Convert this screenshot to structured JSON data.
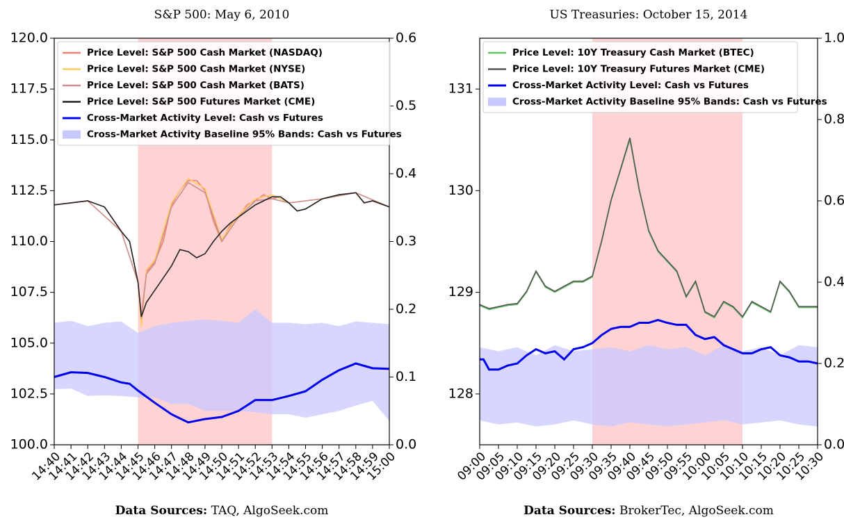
{
  "chart_data": [
    {
      "type": "line",
      "title": "S&P 500: May 6, 2010",
      "source_label": "Data Sources:",
      "source": "TAQ, AlgoSeek.com",
      "xlim": [
        "14:40",
        "15:00"
      ],
      "xticks": [
        "14:40",
        "14:41",
        "14:42",
        "14:43",
        "14:44",
        "14:45",
        "14:46",
        "14:47",
        "14:48",
        "14:49",
        "14:50",
        "14:51",
        "14:52",
        "14:53",
        "14:54",
        "14:55",
        "14:56",
        "14:57",
        "14:58",
        "14:59",
        "15:00"
      ],
      "highlight": [
        "14:45",
        "14:53"
      ],
      "highlight_color": "#ffc8c8",
      "ylim": [
        100,
        120
      ],
      "yticks": [
        {
          "value": 100,
          "label": "100.0"
        },
        {
          "value": 102.5,
          "label": "102.5"
        },
        {
          "value": 105,
          "label": "105.0"
        },
        {
          "value": 107.5,
          "label": "107.5"
        },
        {
          "value": 110,
          "label": "110.0"
        },
        {
          "value": 112.5,
          "label": "112.5"
        },
        {
          "value": 115,
          "label": "115.0"
        },
        {
          "value": 117.5,
          "label": "117.5"
        },
        {
          "value": 120,
          "label": "120.0"
        }
      ],
      "y2lim": [
        0,
        0.6
      ],
      "y2ticks": [
        {
          "value": 0,
          "label": "0.0"
        },
        {
          "value": 0.1,
          "label": "0.1"
        },
        {
          "value": 0.2,
          "label": "0.2"
        },
        {
          "value": 0.3,
          "label": "0.3"
        },
        {
          "value": 0.4,
          "label": "0.4"
        },
        {
          "value": 0.5,
          "label": "0.5"
        },
        {
          "value": 0.6,
          "label": "0.6"
        }
      ],
      "legend": "upper left",
      "series": [
        {
          "name": "Price Level: S&P 500 Cash Market (NASDAQ)",
          "color": "#f08070",
          "x": [
            "14:40",
            "14:41",
            "14:42",
            "14:43",
            "14:44",
            "14:44:30",
            "14:45",
            "14:45:12",
            "14:45:30",
            "14:46",
            "14:46:30",
            "14:47",
            "14:47:30",
            "14:48",
            "14:48:30",
            "14:49",
            "14:49:30",
            "14:50",
            "14:50:30",
            "14:51",
            "14:51:30",
            "14:52",
            "14:52:30",
            "14:53",
            "14:53:30",
            "14:54",
            "14:54:30",
            "14:55",
            "14:56",
            "14:57",
            "14:58",
            "14:58:30",
            "14:59",
            "15:00"
          ],
          "values": [
            111.8,
            111.9,
            112.0,
            111.7,
            110.5,
            110.0,
            108.0,
            106.3,
            108.5,
            109.0,
            110.0,
            111.8,
            112.5,
            113.0,
            113.0,
            112.5,
            111.0,
            110.0,
            110.8,
            111.2,
            111.8,
            112.0,
            112.3,
            112.1,
            112.2,
            111.9,
            111.5,
            111.6,
            112.1,
            112.3,
            112.4,
            111.9,
            112.0,
            111.7
          ]
        },
        {
          "name": "Price Level: S&P 500 Cash Market (NYSE)",
          "color": "#ffcc66",
          "x": [
            "14:40",
            "14:42",
            "14:44",
            "14:45",
            "14:45:12",
            "14:45:30",
            "14:46",
            "14:47",
            "14:48",
            "14:49",
            "14:50",
            "14:51",
            "14:52",
            "14:53",
            "14:54",
            "14:56",
            "14:58",
            "15:00"
          ],
          "values": [
            111.8,
            112.0,
            110.5,
            108.0,
            105.8,
            108.6,
            109.1,
            111.9,
            113.1,
            112.6,
            110.1,
            111.3,
            112.1,
            112.3,
            111.9,
            112.1,
            112.4,
            111.7
          ]
        },
        {
          "name": "Price Level: S&P 500 Cash Market (BATS)",
          "color": "#c89090",
          "x": [
            "14:40",
            "14:42",
            "14:44",
            "14:45",
            "14:45:12",
            "14:45:30",
            "14:46",
            "14:47",
            "14:48",
            "14:49",
            "14:50",
            "14:51",
            "14:52",
            "14:53",
            "14:54",
            "14:56",
            "14:58",
            "15:00"
          ],
          "values": [
            111.8,
            112.0,
            110.5,
            108.0,
            106.2,
            108.4,
            108.9,
            111.7,
            112.9,
            112.4,
            110.0,
            111.2,
            112.0,
            112.1,
            111.9,
            112.1,
            112.4,
            111.7
          ]
        },
        {
          "name": "Price Level: S&P 500 Futures Market (CME)",
          "color": "#222222",
          "x": [
            "14:40",
            "14:41",
            "14:42",
            "14:43",
            "14:44",
            "14:44:30",
            "14:45",
            "14:45:12",
            "14:45:30",
            "14:46",
            "14:46:30",
            "14:47",
            "14:47:30",
            "14:48",
            "14:48:30",
            "14:49",
            "14:49:30",
            "14:50",
            "14:50:30",
            "14:51",
            "14:51:30",
            "14:52",
            "14:52:30",
            "14:53",
            "14:53:30",
            "14:54",
            "14:54:30",
            "14:55",
            "14:56",
            "14:57",
            "14:58",
            "14:58:30",
            "14:59",
            "15:00"
          ],
          "values": [
            111.8,
            111.9,
            112.0,
            111.7,
            110.5,
            110.0,
            108.0,
            106.3,
            107.0,
            107.6,
            108.2,
            108.8,
            109.6,
            109.5,
            109.2,
            109.4,
            110.0,
            110.5,
            110.9,
            111.2,
            111.5,
            111.8,
            112.0,
            112.2,
            112.2,
            111.9,
            111.5,
            111.6,
            112.1,
            112.3,
            112.4,
            111.9,
            112.0,
            111.7
          ]
        },
        {
          "name": "Cross-Market Activity Level: Cash vs Futures",
          "color": "#0000ee",
          "axis": "y2",
          "x": [
            "14:40",
            "14:41",
            "14:42",
            "14:43",
            "14:44",
            "14:44:30",
            "14:45",
            "14:46",
            "14:47",
            "14:48",
            "14:49",
            "14:50",
            "14:51",
            "14:52",
            "14:53",
            "14:54",
            "14:55",
            "14:56",
            "14:57",
            "14:58",
            "14:59",
            "15:00"
          ],
          "values": [
            0.1,
            0.107,
            0.106,
            0.1,
            0.092,
            0.09,
            0.08,
            0.062,
            0.045,
            0.033,
            0.038,
            0.041,
            0.05,
            0.066,
            0.066,
            0.072,
            0.079,
            0.096,
            0.11,
            0.12,
            0.113,
            0.112
          ]
        },
        {
          "name": "Cross-Market Activity Baseline 95% Bands: Cash vs Futures",
          "color": "#c8c8ff",
          "axis": "y2",
          "type": "band",
          "x": [
            "14:40",
            "14:41",
            "14:42",
            "14:43",
            "14:44",
            "14:45",
            "14:46",
            "14:47",
            "14:48",
            "14:49",
            "14:50",
            "14:51",
            "14:52",
            "14:53",
            "14:54",
            "14:55",
            "14:56",
            "14:57",
            "14:58",
            "14:59",
            "15:00"
          ],
          "upper": [
            0.18,
            0.183,
            0.175,
            0.18,
            0.182,
            0.165,
            0.175,
            0.18,
            0.183,
            0.185,
            0.183,
            0.18,
            0.2,
            0.18,
            0.18,
            0.178,
            0.18,
            0.175,
            0.182,
            0.18,
            0.178
          ],
          "lower": [
            0.082,
            0.083,
            0.072,
            0.073,
            0.072,
            0.07,
            0.07,
            0.06,
            0.06,
            0.05,
            0.05,
            0.05,
            0.048,
            0.045,
            0.045,
            0.04,
            0.045,
            0.05,
            0.058,
            0.065,
            0.035
          ]
        }
      ]
    },
    {
      "type": "line",
      "title": "US Treasuries: October 15, 2014",
      "source_label": "Data Sources:",
      "source": "BrokerTec, AlgoSeek.com",
      "xlim": [
        "09:00",
        "10:30"
      ],
      "xticks": [
        "09:00",
        "09:05",
        "09:10",
        "09:15",
        "09:20",
        "09:25",
        "09:30",
        "09:35",
        "09:40",
        "09:45",
        "09:50",
        "09:55",
        "10:00",
        "10:05",
        "10:10",
        "10:15",
        "10:20",
        "10:25",
        "10:30"
      ],
      "highlight": [
        "09:30",
        "10:10"
      ],
      "highlight_color": "#ffc8c8",
      "ylim": [
        127.5,
        131.5
      ],
      "yticks": [
        128,
        129,
        130,
        131
      ],
      "y2lim": [
        0,
        1
      ],
      "y2ticks": [
        {
          "value": 0,
          "label": "0.0"
        },
        {
          "value": 0.2,
          "label": "0.2"
        },
        {
          "value": 0.4,
          "label": "0.4"
        },
        {
          "value": 0.6,
          "label": "0.6"
        },
        {
          "value": 0.8,
          "label": "0.8"
        },
        {
          "value": 1,
          "label": "1.0"
        }
      ],
      "legend": "upper left",
      "series": [
        {
          "name": "Price Level: 10Y Treasury Cash Market (BTEC)",
          "color": "#66bb66",
          "x": [
            "09:00",
            "09:02:30",
            "09:05",
            "09:07:30",
            "09:10",
            "09:12:30",
            "09:15",
            "09:17:30",
            "09:20",
            "09:22:30",
            "09:25",
            "09:27:30",
            "09:30",
            "09:32:30",
            "09:35",
            "09:37:30",
            "09:40",
            "09:42:30",
            "09:45",
            "09:47:30",
            "09:50",
            "09:52:30",
            "09:55",
            "09:57:30",
            "10:00",
            "10:02:30",
            "10:05",
            "10:07:30",
            "10:10",
            "10:12:30",
            "10:15",
            "10:17:30",
            "10:20",
            "10:22:30",
            "10:25",
            "10:27:30",
            "10:30"
          ],
          "values": [
            128.87,
            128.83,
            128.85,
            128.87,
            128.88,
            129.0,
            129.2,
            129.05,
            129.0,
            129.05,
            129.1,
            129.1,
            129.15,
            129.5,
            129.9,
            130.2,
            130.5,
            130.0,
            129.6,
            129.4,
            129.3,
            129.2,
            128.95,
            129.1,
            128.8,
            128.75,
            128.9,
            128.85,
            128.75,
            128.9,
            128.85,
            128.8,
            129.1,
            129.0,
            128.85,
            128.85,
            128.85
          ]
        },
        {
          "name": "Price Level: 10Y Treasury Futures Market (CME)",
          "color": "#555555",
          "x": [
            "09:00",
            "09:02:30",
            "09:05",
            "09:07:30",
            "09:10",
            "09:12:30",
            "09:15",
            "09:17:30",
            "09:20",
            "09:22:30",
            "09:25",
            "09:27:30",
            "09:30",
            "09:32:30",
            "09:35",
            "09:37:30",
            "09:40",
            "09:42:30",
            "09:45",
            "09:47:30",
            "09:50",
            "09:52:30",
            "09:55",
            "09:57:30",
            "10:00",
            "10:02:30",
            "10:05",
            "10:07:30",
            "10:10",
            "10:12:30",
            "10:15",
            "10:17:30",
            "10:20",
            "10:22:30",
            "10:25",
            "10:27:30",
            "10:30"
          ],
          "values": [
            128.88,
            128.84,
            128.86,
            128.88,
            128.89,
            129.01,
            129.21,
            129.06,
            129.01,
            129.06,
            129.11,
            129.11,
            129.16,
            129.51,
            129.91,
            130.21,
            130.52,
            130.01,
            129.61,
            129.41,
            129.31,
            129.21,
            128.96,
            129.11,
            128.81,
            128.76,
            128.91,
            128.86,
            128.76,
            128.91,
            128.86,
            128.81,
            129.11,
            129.01,
            128.86,
            128.86,
            128.86
          ]
        },
        {
          "name": "Cross-Market Activity Level: Cash vs Futures",
          "color": "#0000ee",
          "axis": "y2",
          "x": [
            "09:00",
            "09:01",
            "09:02:30",
            "09:05",
            "09:07:30",
            "09:10",
            "09:12:30",
            "09:15",
            "09:17:30",
            "09:20",
            "09:22:30",
            "09:25",
            "09:27:30",
            "09:30",
            "09:32:30",
            "09:35",
            "09:37:30",
            "09:40",
            "09:42:30",
            "09:45",
            "09:47:30",
            "09:50",
            "09:52:30",
            "09:55",
            "09:57:30",
            "10:00",
            "10:02:30",
            "10:05",
            "10:07:30",
            "10:10",
            "10:12:30",
            "10:15",
            "10:17:30",
            "10:20",
            "10:22:30",
            "10:25",
            "10:27:30",
            "10:30"
          ],
          "values": [
            0.21,
            0.21,
            0.185,
            0.185,
            0.195,
            0.2,
            0.22,
            0.235,
            0.225,
            0.23,
            0.21,
            0.235,
            0.24,
            0.25,
            0.27,
            0.285,
            0.29,
            0.29,
            0.3,
            0.3,
            0.307,
            0.3,
            0.295,
            0.295,
            0.27,
            0.26,
            0.265,
            0.245,
            0.235,
            0.225,
            0.225,
            0.235,
            0.24,
            0.22,
            0.215,
            0.205,
            0.205,
            0.2
          ]
        },
        {
          "name": "Cross-Market Activity Baseline 95% Bands: Cash vs Futures",
          "color": "#c8c8ff",
          "axis": "y2",
          "type": "band",
          "x": [
            "09:00",
            "09:05",
            "09:10",
            "09:15",
            "09:20",
            "09:25",
            "09:30",
            "09:35",
            "09:40",
            "09:45",
            "09:50",
            "09:55",
            "10:00",
            "10:05",
            "10:10",
            "10:15",
            "10:20",
            "10:25",
            "10:30"
          ],
          "upper": [
            0.24,
            0.23,
            0.24,
            0.22,
            0.245,
            0.23,
            0.235,
            0.24,
            0.23,
            0.245,
            0.235,
            0.24,
            0.22,
            0.245,
            0.23,
            0.24,
            0.22,
            0.245,
            0.24
          ],
          "lower": [
            0.06,
            0.05,
            0.055,
            0.045,
            0.05,
            0.06,
            0.05,
            0.045,
            0.055,
            0.05,
            0.045,
            0.05,
            0.055,
            0.06,
            0.05,
            0.055,
            0.06,
            0.05,
            0.045
          ]
        }
      ]
    }
  ]
}
